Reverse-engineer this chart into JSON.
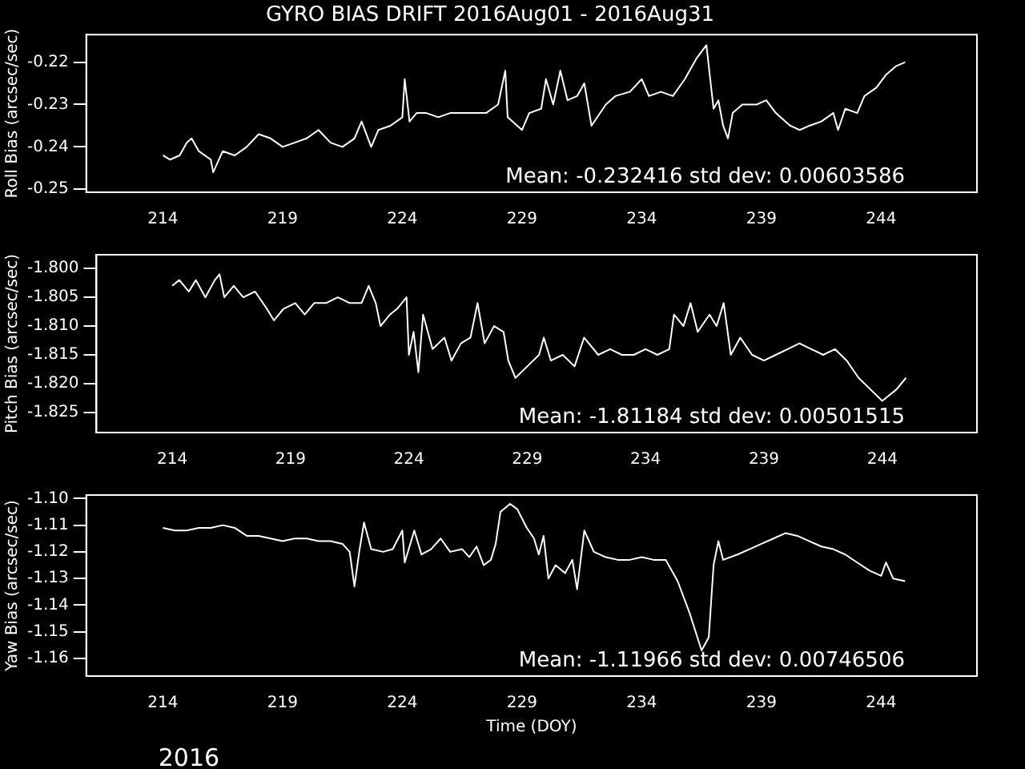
{
  "chart_data": [
    {
      "type": "line",
      "title": "GYRO BIAS DRIFT 2016Aug01 - 2016Aug31",
      "ylabel": "Roll Bias (arcsec/sec)",
      "color": "#ffffff",
      "xlim": [
        210.8,
        248
      ],
      "ylim": [
        -0.2507,
        -0.2135
      ],
      "xticks": [
        214,
        219,
        224,
        229,
        234,
        239,
        244
      ],
      "yticks": [
        -0.25,
        -0.24,
        -0.23,
        -0.22
      ],
      "annotations": [
        "Mean: -0.232416 std dev: 0.00603586"
      ],
      "x": [
        214.0,
        214.3,
        214.7,
        215.0,
        215.2,
        215.5,
        216.0,
        216.1,
        216.5,
        217.0,
        217.5,
        218.0,
        218.5,
        219.0,
        219.5,
        220.0,
        220.5,
        221.0,
        221.5,
        222.0,
        222.3,
        222.7,
        223.0,
        223.5,
        224.0,
        224.1,
        224.3,
        224.6,
        225.0,
        225.5,
        226.0,
        226.5,
        227.0,
        227.5,
        228.0,
        228.3,
        228.4,
        228.8,
        229.0,
        229.3,
        229.8,
        230.0,
        230.3,
        230.6,
        230.9,
        231.3,
        231.6,
        231.9,
        232.5,
        232.9,
        233.5,
        234.0,
        234.3,
        234.8,
        235.3,
        235.8,
        236.3,
        236.7,
        237.0,
        237.2,
        237.4,
        237.6,
        237.8,
        238.2,
        238.8,
        239.2,
        239.6,
        240.2,
        240.6,
        241.0,
        241.5,
        242.0,
        242.2,
        242.5,
        243.0,
        243.3,
        243.8,
        244.2,
        244.6,
        245.0
      ],
      "values": [
        -0.242,
        -0.243,
        -0.242,
        -0.239,
        -0.238,
        -0.241,
        -0.243,
        -0.246,
        -0.241,
        -0.242,
        -0.24,
        -0.237,
        -0.238,
        -0.24,
        -0.239,
        -0.238,
        -0.236,
        -0.239,
        -0.24,
        -0.238,
        -0.234,
        -0.24,
        -0.236,
        -0.235,
        -0.233,
        -0.224,
        -0.234,
        -0.232,
        -0.232,
        -0.233,
        -0.232,
        -0.232,
        -0.232,
        -0.232,
        -0.23,
        -0.222,
        -0.233,
        -0.235,
        -0.236,
        -0.232,
        -0.231,
        -0.224,
        -0.23,
        -0.222,
        -0.229,
        -0.228,
        -0.225,
        -0.235,
        -0.23,
        -0.228,
        -0.227,
        -0.224,
        -0.228,
        -0.227,
        -0.228,
        -0.224,
        -0.219,
        -0.216,
        -0.231,
        -0.229,
        -0.235,
        -0.238,
        -0.232,
        -0.23,
        -0.23,
        -0.229,
        -0.232,
        -0.235,
        -0.236,
        -0.235,
        -0.234,
        -0.232,
        -0.236,
        -0.231,
        -0.232,
        -0.228,
        -0.226,
        -0.223,
        -0.221,
        -0.22
      ]
    },
    {
      "type": "line",
      "ylabel": "Pitch Bias (arcsec/sec)",
      "color": "#ffffff",
      "xlim": [
        210.8,
        248
      ],
      "ylim": [
        -1.8285,
        -1.7976
      ],
      "xticks": [
        214,
        219,
        224,
        229,
        234,
        239,
        244
      ],
      "yticks": [
        {
          "value": -1.825,
          "label": "-1.825"
        },
        {
          "value": -1.82,
          "label": "-1.820"
        },
        {
          "value": -1.815,
          "label": "-1.815"
        },
        {
          "value": -1.81,
          "label": "-1.810"
        },
        {
          "value": -1.805,
          "label": "-1.805"
        },
        {
          "value": -1.8,
          "label": "-1.800"
        }
      ],
      "annotations": [
        "Mean: -1.81184 std dev: 0.00501515"
      ],
      "x": [
        214.0,
        214.3,
        214.7,
        215.0,
        215.4,
        215.8,
        216.0,
        216.2,
        216.6,
        217.0,
        217.5,
        218.0,
        218.3,
        218.7,
        219.2,
        219.6,
        220.0,
        220.5,
        221.0,
        221.5,
        222.0,
        222.3,
        222.6,
        222.8,
        223.2,
        223.5,
        223.9,
        224.0,
        224.2,
        224.4,
        224.6,
        225.0,
        225.5,
        225.8,
        226.2,
        226.6,
        226.9,
        227.2,
        227.6,
        228.0,
        228.2,
        228.5,
        229.0,
        229.5,
        229.7,
        230.0,
        230.5,
        231.0,
        231.4,
        232.0,
        232.5,
        233.0,
        233.5,
        234.0,
        234.5,
        235.0,
        235.2,
        235.6,
        235.9,
        236.2,
        236.7,
        237.0,
        237.3,
        237.6,
        238.0,
        238.5,
        239.0,
        239.5,
        240.0,
        240.5,
        241.0,
        241.5,
        242.0,
        242.5,
        243.0,
        243.5,
        244.0,
        244.3,
        244.6,
        245.0
      ],
      "values": [
        -1.803,
        -1.802,
        -1.804,
        -1.802,
        -1.805,
        -1.802,
        -1.801,
        -1.805,
        -1.803,
        -1.805,
        -1.804,
        -1.807,
        -1.809,
        -1.807,
        -1.806,
        -1.808,
        -1.806,
        -1.806,
        -1.805,
        -1.806,
        -1.806,
        -1.803,
        -1.806,
        -1.81,
        -1.808,
        -1.807,
        -1.805,
        -1.815,
        -1.811,
        -1.818,
        -1.808,
        -1.814,
        -1.812,
        -1.816,
        -1.813,
        -1.812,
        -1.806,
        -1.813,
        -1.81,
        -1.811,
        -1.816,
        -1.819,
        -1.817,
        -1.815,
        -1.812,
        -1.816,
        -1.815,
        -1.817,
        -1.812,
        -1.815,
        -1.814,
        -1.815,
        -1.815,
        -1.814,
        -1.815,
        -1.814,
        -1.808,
        -1.81,
        -1.806,
        -1.811,
        -1.808,
        -1.81,
        -1.806,
        -1.815,
        -1.812,
        -1.815,
        -1.816,
        -1.815,
        -1.814,
        -1.813,
        -1.814,
        -1.815,
        -1.814,
        -1.816,
        -1.819,
        -1.821,
        -1.823,
        -1.822,
        -1.821,
        -1.819
      ]
    },
    {
      "type": "line",
      "ylabel": "Yaw Bias (arcsec/sec)",
      "xlabel": "Time (DOY)",
      "color": "#ffffff",
      "xlim": [
        210.8,
        248
      ],
      "ylim": [
        -1.1666,
        -1.0987
      ],
      "xticks": [
        214,
        219,
        224,
        229,
        234,
        239,
        244
      ],
      "yticks": [
        -1.16,
        -1.15,
        -1.14,
        -1.13,
        -1.12,
        -1.11,
        {
          "value": -1.1,
          "label": "-1.10"
        }
      ],
      "annotations": [
        "Mean: -1.11966 std dev: 0.00746506",
        "2016"
      ],
      "x": [
        214.0,
        214.5,
        215.0,
        215.5,
        216.0,
        216.5,
        217.0,
        217.5,
        218.0,
        218.5,
        219.0,
        219.5,
        220.0,
        220.5,
        221.0,
        221.5,
        221.8,
        222.0,
        222.2,
        222.4,
        222.7,
        223.2,
        223.6,
        224.0,
        224.1,
        224.5,
        224.8,
        225.2,
        225.6,
        226.0,
        226.5,
        226.8,
        227.1,
        227.4,
        227.7,
        227.9,
        228.1,
        228.5,
        228.8,
        229.2,
        229.5,
        229.7,
        229.9,
        230.1,
        230.4,
        230.8,
        231.1,
        231.3,
        231.6,
        232.0,
        232.5,
        233.0,
        233.5,
        234.0,
        234.5,
        235.0,
        235.5,
        236.0,
        236.5,
        236.8,
        237.0,
        237.2,
        237.4,
        238.0,
        238.5,
        239.0,
        239.5,
        240.0,
        240.5,
        241.0,
        241.5,
        242.0,
        242.5,
        243.0,
        243.5,
        244.0,
        244.2,
        244.5,
        245.0
      ],
      "values": [
        -1.111,
        -1.112,
        -1.112,
        -1.111,
        -1.111,
        -1.11,
        -1.111,
        -1.114,
        -1.114,
        -1.115,
        -1.116,
        -1.115,
        -1.115,
        -1.116,
        -1.116,
        -1.117,
        -1.12,
        -1.133,
        -1.12,
        -1.109,
        -1.119,
        -1.12,
        -1.119,
        -1.112,
        -1.124,
        -1.112,
        -1.121,
        -1.119,
        -1.115,
        -1.12,
        -1.119,
        -1.122,
        -1.118,
        -1.125,
        -1.123,
        -1.117,
        -1.105,
        -1.102,
        -1.104,
        -1.111,
        -1.115,
        -1.121,
        -1.114,
        -1.13,
        -1.125,
        -1.128,
        -1.123,
        -1.134,
        -1.112,
        -1.12,
        -1.122,
        -1.123,
        -1.123,
        -1.122,
        -1.123,
        -1.123,
        -1.131,
        -1.143,
        -1.157,
        -1.152,
        -1.125,
        -1.116,
        -1.123,
        -1.121,
        -1.119,
        -1.117,
        -1.115,
        -1.113,
        -1.114,
        -1.116,
        -1.118,
        -1.119,
        -1.121,
        -1.124,
        -1.127,
        -1.129,
        -1.124,
        -1.13,
        -1.131
      ]
    }
  ]
}
